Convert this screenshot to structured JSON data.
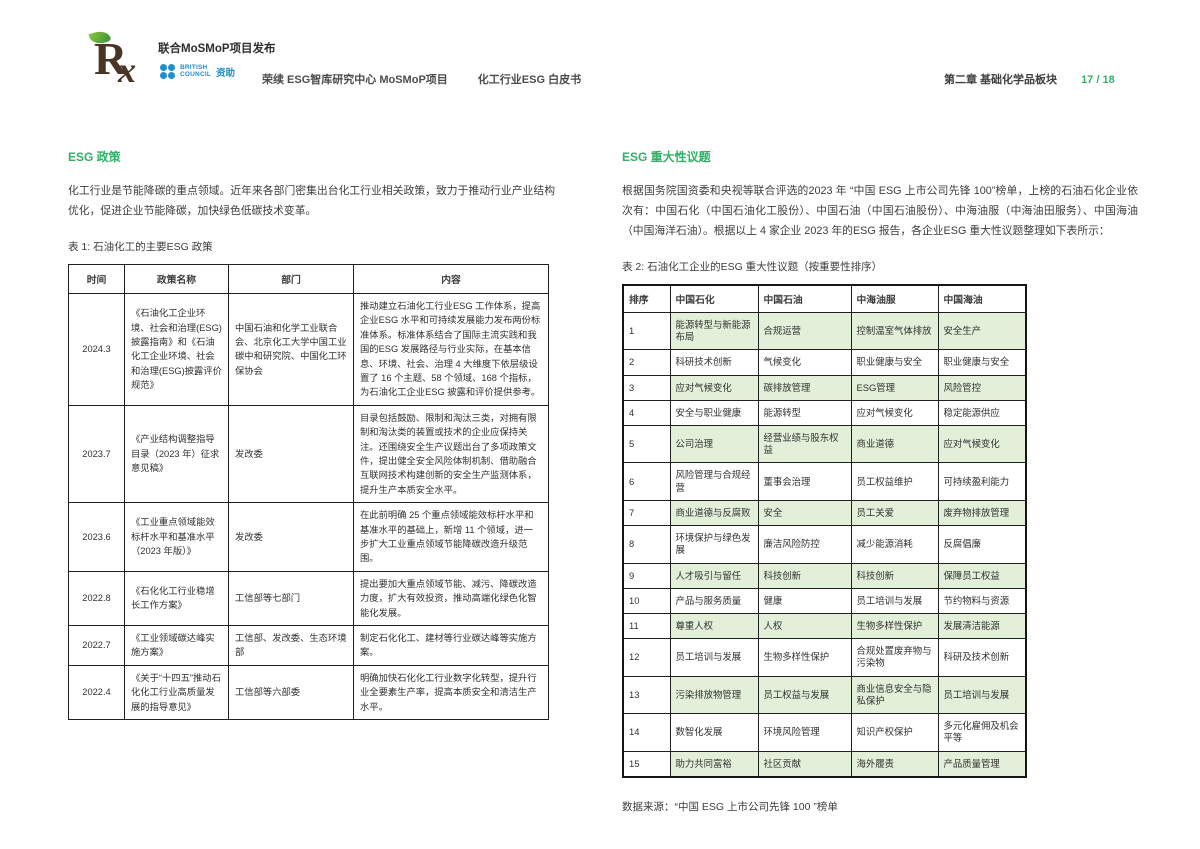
{
  "header": {
    "logo_r": "R",
    "logo_x": "x",
    "published_by": "联合MoSMoP项目发布",
    "bc_line1": "BRITISH",
    "bc_line2": "COUNCIL",
    "funded_label": "资助",
    "center_title_1": "荣续 ESG智库研究中心 MoSMoP项目",
    "center_title_2": "化工行业ESG 白皮书",
    "chapter": "第二章 基础化学品板块",
    "page_number": "17 / 18"
  },
  "left": {
    "heading": "ESG 政策",
    "intro": "化工行业是节能降碳的重点领域。近年来各部门密集出台化工行业相关政策，致力于推动行业产业结构优化，促进企业节能降碳，加快绿色低碳技术变革。",
    "table_caption": "表 1: 石油化工的主要ESG 政策",
    "table": {
      "headers": [
        "时间",
        "政策名称",
        "部门",
        "内容"
      ],
      "rows": [
        {
          "time": "2024.3",
          "policy": "《石油化工企业环境、社会和治理(ESG)披露指南》和《石油化工企业环境、社会和治理(ESG)披露评价规范》",
          "department": "中国石油和化学工业联合会、北京化工大学中国工业碳中和研究院、中国化工环保协会",
          "content": "推动建立石油化工行业ESG 工作体系，提高企业ESG 水平和可持续发展能力发布两份标准体系。标准体系结合了国际主流实践和我国的ESG 发展路径与行业实际，在基本信息、环境、社会、治理 4 大维度下依层级设置了 16 个主题、58 个领域、168 个指标，为石油化工企业ESG 披露和评价提供参考。"
        },
        {
          "time": "2023.7",
          "policy": "《产业结构调整指导目录（2023 年）征求意见稿》",
          "department": "发改委",
          "content": "目录包括鼓励、限制和淘汰三类，对拥有限制和淘汰类的装置或技术的企业应保持关注。还围绕安全生产议题出台了多项政策文件，提出健全安全风险体制机制、借助融合互联网技术构建创新的安全生产监测体系，提升生产本质安全水平。"
        },
        {
          "time": "2023.6",
          "policy": "《工业重点领域能效标杆水平和基准水平（2023 年版）》",
          "department": "发改委",
          "content": "在此前明确 25 个重点领域能效标杆水平和基准水平的基础上，新增 11 个领域，进一步扩大工业重点领域节能降碳改造升级范围。"
        },
        {
          "time": "2022.8",
          "policy": "《石化化工行业稳增长工作方案》",
          "department": "工信部等七部门",
          "content": "提出要加大重点领域节能、减污、降碳改造力度，扩大有效投资，推动高端化绿色化智能化发展。"
        },
        {
          "time": "2022.7",
          "policy": "《工业领域碳达峰实施方案》",
          "department": "工信部、发改委、生态环境部",
          "content": "制定石化化工、建材等行业碳达峰等实施方案。"
        },
        {
          "time": "2022.4",
          "policy": "《关于“十四五”推动石化化工行业高质量发展的指导意见》",
          "department": "工信部等六部委",
          "content": "明确加快石化化工行业数字化转型，提升行业全要素生产率，提高本质安全和清洁生产水平。"
        }
      ]
    }
  },
  "right": {
    "heading": "ESG 重大性议题",
    "intro": "根据国务院国资委和央视等联合评选的2023 年 “中国 ESG 上市公司先锋 100”榜单，上榜的石油石化企业依次有：中国石化（中国石油化工股份）、中国石油（中国石油股份）、中海油服（中海油田服务）、中国海油（中国海洋石油）。根据以上 4 家企业 2023 年的ESG 报告，各企业ESG 重大性议题整理如下表所示：",
    "table_caption": "表 2: 石油化工企业的ESG 重大性议题（按重要性排序）",
    "table": {
      "headers": [
        "排序",
        "中国石化",
        "中国石油",
        "中海油服",
        "中国海油"
      ],
      "rows": [
        [
          "1",
          "能源转型与新能源布局",
          "合规运营",
          "控制温室气体排放",
          "安全生产"
        ],
        [
          "2",
          "科研技术创新",
          "气候变化",
          "职业健康与安全",
          "职业健康与安全"
        ],
        [
          "3",
          "应对气候变化",
          "碳排放管理",
          "ESG管理",
          "风险管控"
        ],
        [
          "4",
          "安全与职业健康",
          "能源转型",
          "应对气候变化",
          "稳定能源供应"
        ],
        [
          "5",
          "公司治理",
          "经营业绩与股东权益",
          "商业道德",
          "应对气候变化"
        ],
        [
          "6",
          "风险管理与合规经营",
          "董事会治理",
          "员工权益维护",
          "可持续盈利能力"
        ],
        [
          "7",
          "商业道德与反腐败",
          "安全",
          "员工关爱",
          "废弃物排放管理"
        ],
        [
          "8",
          "环境保护与绿色发展",
          "廉洁风险防控",
          "减少能源消耗",
          "反腐倡廉"
        ],
        [
          "9",
          "人才吸引与留任",
          "科技创新",
          "科技创新",
          "保障员工权益"
        ],
        [
          "10",
          "产品与服务质量",
          "健康",
          "员工培训与发展",
          "节约物料与资源"
        ],
        [
          "11",
          "尊重人权",
          "人权",
          "生物多样性保护",
          "发展清洁能源"
        ],
        [
          "12",
          "员工培训与发展",
          "生物多样性保护",
          "合规处置废弃物与污染物",
          "科研及技术创新"
        ],
        [
          "13",
          "污染排放物管理",
          "员工权益与发展",
          "商业信息安全与隐私保护",
          "员工培训与发展"
        ],
        [
          "14",
          "数智化发展",
          "环境风险管理",
          "知识产权保护",
          "多元化雇佣及机会平等"
        ],
        [
          "15",
          "助力共同富裕",
          "社区贡献",
          "海外履责",
          "产品质量管理"
        ]
      ]
    },
    "source_note": "数据来源：“中国 ESG 上市公司先锋 100 ”榜单"
  },
  "colors": {
    "accent_green": "#2fb167",
    "cell_green": "#e2efd9",
    "brand_blue": "#1e8fce",
    "logo_brown": "#4a3426"
  }
}
